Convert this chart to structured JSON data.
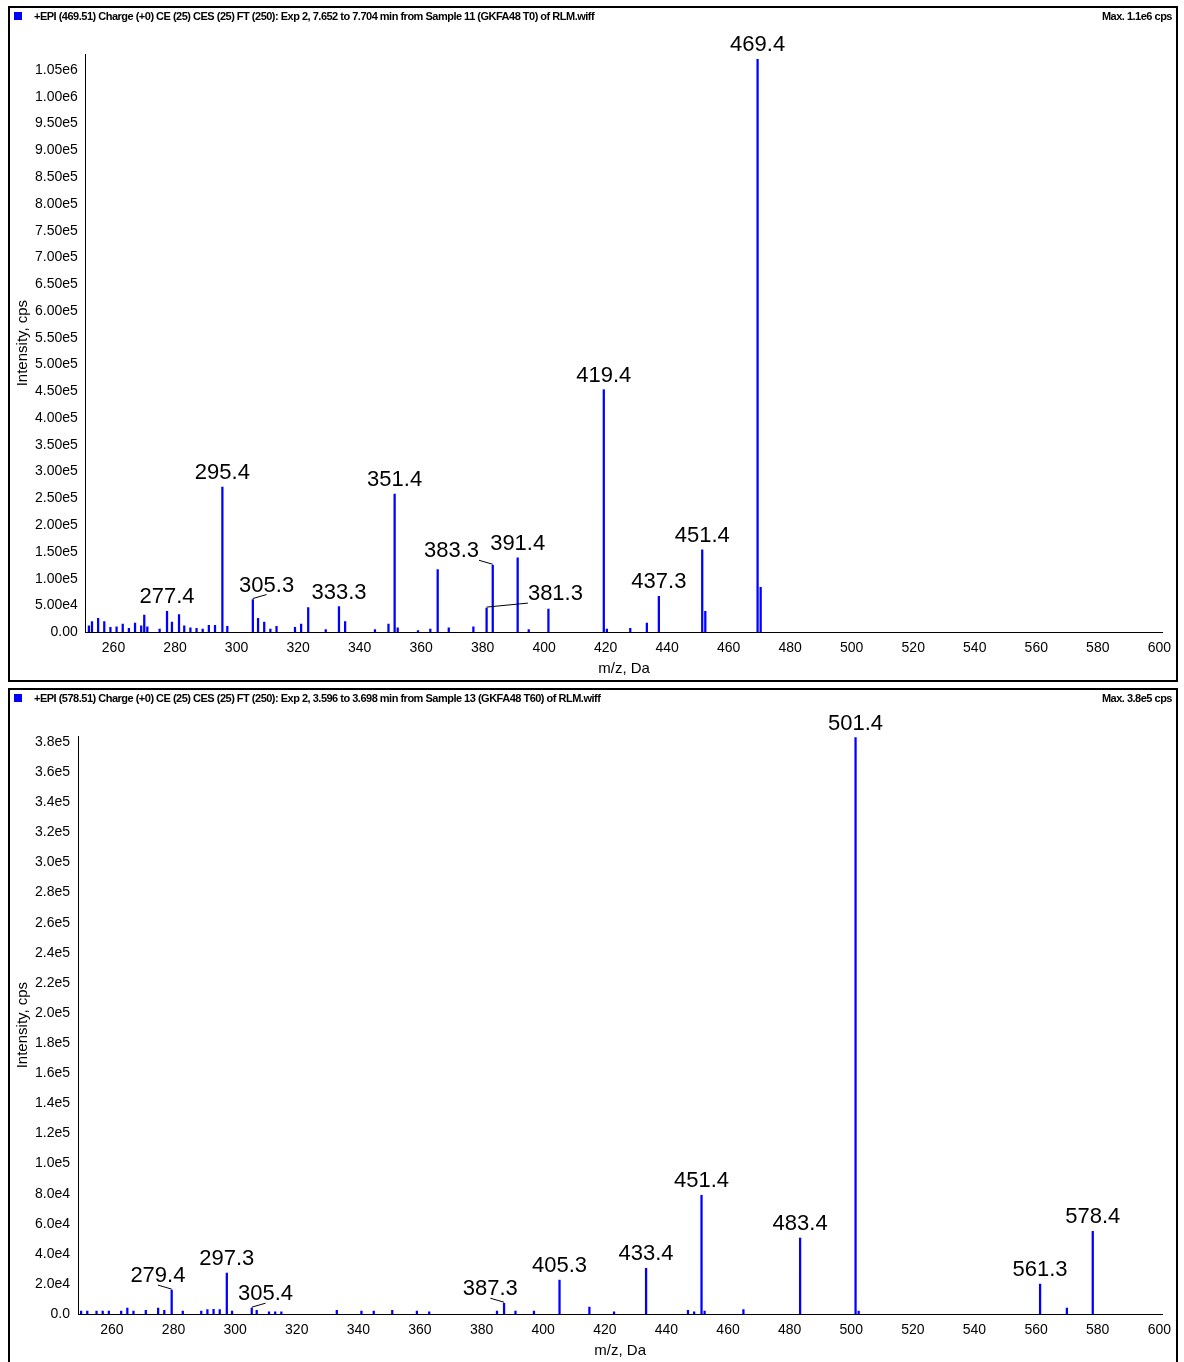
{
  "chart_data": [
    {
      "type": "bar",
      "title": "+EPI (469.51) Charge (+0) CE (25) CES (25) FT (250): Exp 2, 7.652 to 7.704 min from Sample 11 (GKFA48 T0) of RLM.wiff",
      "xlabel": "m/z, Da",
      "ylabel": "Intensity, cps",
      "x": [
        252,
        253,
        255,
        257,
        259,
        261,
        263,
        265,
        267,
        269,
        270,
        271,
        275,
        277.4,
        279,
        281.3,
        283,
        285,
        287,
        289,
        291,
        293,
        295.4,
        297,
        305.3,
        307,
        309,
        311,
        313,
        319,
        321,
        323.3,
        329,
        333.3,
        335.3,
        345,
        349.4,
        351.4,
        352.4,
        359,
        363,
        365.4,
        369,
        377,
        381.3,
        383.3,
        391.4,
        395,
        401.4,
        419.4,
        420.4,
        428,
        433.4,
        437.3,
        451.4,
        452.4,
        469.4,
        470.4
      ],
      "series": [
        {
          "color": "#0000ff",
          "values": [
            12000,
            20000,
            26000,
            20000,
            9000,
            10000,
            15000,
            7000,
            17000,
            12000,
            32000,
            10000,
            6000,
            39000,
            19000,
            33000,
            12000,
            8000,
            7000,
            6000,
            13000,
            13000,
            271000,
            11000,
            61000,
            26000,
            19000,
            6000,
            11000,
            9000,
            15000,
            46000,
            5000,
            48000,
            20000,
            5000,
            15000,
            258000,
            8000,
            3000,
            6000,
            117000,
            8000,
            10000,
            45000,
            125000,
            139000,
            5000,
            43000,
            453000,
            6000,
            7000,
            17000,
            67000,
            154000,
            39000,
            1070000,
            84000
          ]
        }
      ],
      "xlim": [
        251,
        601
      ],
      "xticks": [
        260,
        280,
        300,
        320,
        340,
        360,
        380,
        400,
        420,
        440,
        460,
        480,
        500,
        520,
        540,
        560,
        580,
        600
      ],
      "ylim": [
        0,
        1080000
      ],
      "yticks": [
        {
          "value": 0,
          "label": "0.00"
        },
        {
          "value": 50000,
          "label": "5.00e4"
        },
        {
          "value": 100000,
          "label": "1.00e5"
        },
        {
          "value": 150000,
          "label": "1.50e5"
        },
        {
          "value": 200000,
          "label": "2.00e5"
        },
        {
          "value": 250000,
          "label": "2.50e5"
        },
        {
          "value": 300000,
          "label": "3.00e5"
        },
        {
          "value": 350000,
          "label": "3.50e5"
        },
        {
          "value": 400000,
          "label": "4.00e5"
        },
        {
          "value": 450000,
          "label": "4.50e5"
        },
        {
          "value": 500000,
          "label": "5.00e5"
        },
        {
          "value": 550000,
          "label": "5.50e5"
        },
        {
          "value": 600000,
          "label": "6.00e5"
        },
        {
          "value": 650000,
          "label": "6.50e5"
        },
        {
          "value": 700000,
          "label": "7.00e5"
        },
        {
          "value": 750000,
          "label": "7.50e5"
        },
        {
          "value": 800000,
          "label": "8.00e5"
        },
        {
          "value": 850000,
          "label": "8.50e5"
        },
        {
          "value": 900000,
          "label": "9.00e5"
        },
        {
          "value": 950000,
          "label": "9.50e5"
        },
        {
          "value": 1000000,
          "label": "1.00e6"
        },
        {
          "value": 1050000,
          "label": "1.05e6"
        }
      ],
      "grid": false,
      "annotations": [
        "Max. 1.1e6 cps",
        {
          "text": "277.4",
          "x": 277.4,
          "y": 39000
        },
        {
          "text": "295.4",
          "x": 295.4,
          "y": 271000
        },
        {
          "text": "305.3",
          "x": 305.3,
          "y": 61000
        },
        {
          "text": "333.3",
          "x": 333.3,
          "y": 48000
        },
        {
          "text": "351.4",
          "x": 351.4,
          "y": 258000
        },
        {
          "text": "381.3",
          "x": 381.3,
          "y": 45000
        },
        {
          "text": "383.3",
          "x": 383.3,
          "y": 125000
        },
        {
          "text": "391.4",
          "x": 391.4,
          "y": 139000
        },
        {
          "text": "419.4",
          "x": 419.4,
          "y": 453000
        },
        {
          "text": "437.3",
          "x": 437.3,
          "y": 67000
        },
        {
          "text": "451.4",
          "x": 451.4,
          "y": 154000
        },
        {
          "text": "469.4",
          "x": 469.4,
          "y": 1070000
        }
      ]
    },
    {
      "type": "bar",
      "title": "+EPI (578.51) Charge (+0) CE (25) CES (25) FT (250): Exp 2, 3.596 to 3.698 min from Sample 13 (GKFA48 T60) of RLM.wiff",
      "xlabel": "m/z, Da",
      "ylabel": "Intensity, cps",
      "x": [
        250,
        252,
        255,
        257,
        259,
        263,
        265,
        267,
        271,
        275,
        277,
        279.4,
        283,
        289,
        291,
        293,
        295,
        297.3,
        299,
        305.4,
        307,
        311,
        313,
        315,
        333,
        341,
        345,
        351,
        359,
        363,
        385,
        387.3,
        391,
        397,
        405.3,
        415,
        423,
        433.4,
        447,
        449,
        451.4,
        452.4,
        465,
        483.4,
        501.4,
        502.4,
        561.3,
        570,
        578.4
      ],
      "series": [
        {
          "color": "#0000ff",
          "values": [
            2000,
            2000,
            2000,
            2000,
            2000,
            2000,
            4000,
            2000,
            2500,
            4000,
            2500,
            16000,
            2000,
            2000,
            3000,
            3300,
            3000,
            27300,
            2000,
            4000,
            2500,
            1500,
            1500,
            1500,
            2500,
            2000,
            2000,
            2500,
            2000,
            1500,
            2000,
            7300,
            2000,
            2000,
            22600,
            4700,
            1500,
            30500,
            2500,
            1500,
            79000,
            2000,
            3000,
            50600,
            383000,
            2000,
            20000,
            4000,
            55000
          ]
        }
      ],
      "xlim": [
        249,
        601
      ],
      "xticks": [
        260,
        280,
        300,
        320,
        340,
        360,
        380,
        400,
        420,
        440,
        460,
        480,
        500,
        520,
        540,
        560,
        580,
        600
      ],
      "ylim": [
        0,
        384000
      ],
      "yticks": [
        {
          "value": 0,
          "label": "0.0"
        },
        {
          "value": 20000,
          "label": "2.0e4"
        },
        {
          "value": 40000,
          "label": "4.0e4"
        },
        {
          "value": 60000,
          "label": "6.0e4"
        },
        {
          "value": 80000,
          "label": "8.0e4"
        },
        {
          "value": 100000,
          "label": "1.0e5"
        },
        {
          "value": 120000,
          "label": "1.2e5"
        },
        {
          "value": 140000,
          "label": "1.4e5"
        },
        {
          "value": 160000,
          "label": "1.6e5"
        },
        {
          "value": 180000,
          "label": "1.8e5"
        },
        {
          "value": 200000,
          "label": "2.0e5"
        },
        {
          "value": 220000,
          "label": "2.2e5"
        },
        {
          "value": 240000,
          "label": "2.4e5"
        },
        {
          "value": 260000,
          "label": "2.6e5"
        },
        {
          "value": 280000,
          "label": "2.8e5"
        },
        {
          "value": 300000,
          "label": "3.0e5"
        },
        {
          "value": 320000,
          "label": "3.2e5"
        },
        {
          "value": 340000,
          "label": "3.4e5"
        },
        {
          "value": 360000,
          "label": "3.6e5"
        },
        {
          "value": 380000,
          "label": "3.8e5"
        }
      ],
      "grid": false,
      "annotations": [
        "Max. 3.8e5 cps",
        {
          "text": "279.4",
          "x": 279.4,
          "y": 16000
        },
        {
          "text": "297.3",
          "x": 297.3,
          "y": 27300
        },
        {
          "text": "305.4",
          "x": 305.4,
          "y": 4000
        },
        {
          "text": "387.3",
          "x": 387.3,
          "y": 7300
        },
        {
          "text": "405.3",
          "x": 405.3,
          "y": 22600
        },
        {
          "text": "433.4",
          "x": 433.4,
          "y": 30500
        },
        {
          "text": "451.4",
          "x": 451.4,
          "y": 79000
        },
        {
          "text": "483.4",
          "x": 483.4,
          "y": 50600
        },
        {
          "text": "501.4",
          "x": 501.4,
          "y": 383000
        },
        {
          "text": "561.3",
          "x": 561.3,
          "y": 20000
        },
        {
          "text": "578.4",
          "x": 578.4,
          "y": 55000
        }
      ]
    }
  ]
}
